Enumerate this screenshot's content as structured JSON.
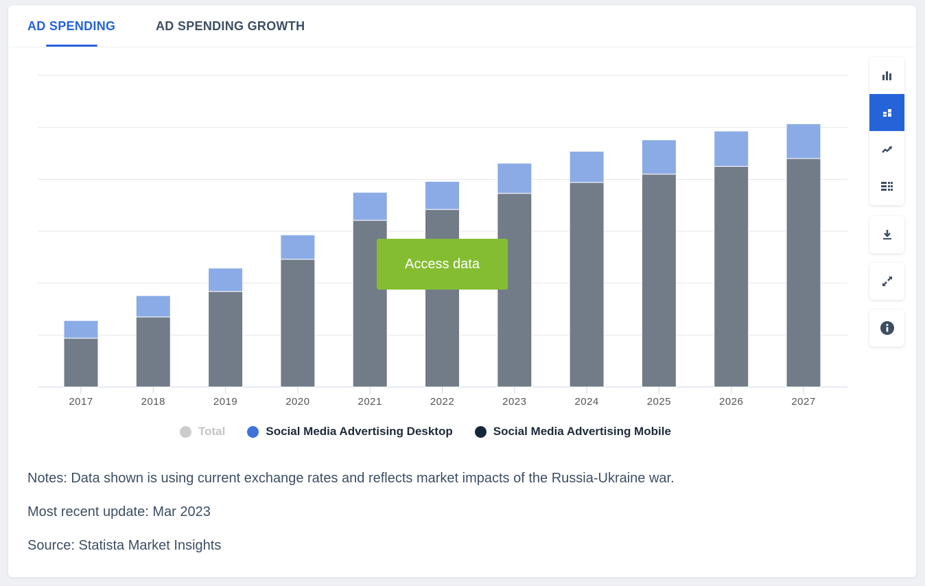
{
  "tabs": [
    {
      "label": "AD SPENDING",
      "active": true
    },
    {
      "label": "AD SPENDING GROWTH",
      "active": false
    }
  ],
  "toolbar": {
    "chart_types": [
      "bar-chart-icon",
      "stacked-bar-icon",
      "line-trend-icon",
      "table-icon"
    ],
    "active": "stacked-bar-icon",
    "actions": [
      "download-icon",
      "expand-icon",
      "info-icon"
    ]
  },
  "access_button": "Access data",
  "legend": [
    {
      "label": "Total",
      "color": "#cccccc",
      "disabled": true
    },
    {
      "label": "Social Media Advertising Desktop",
      "color": "#3f73db"
    },
    {
      "label": "Social Media Advertising Mobile",
      "color": "#16263d"
    }
  ],
  "notes": {
    "notes": "Notes: Data shown is using current exchange rates and reflects market impacts of the Russia-Ukraine war.",
    "update": "Most recent update: Mar 2023",
    "source": "Source: Statista Market Insights"
  },
  "chart_data": {
    "type": "bar",
    "stacked": true,
    "categories": [
      "2017",
      "2018",
      "2019",
      "2020",
      "2021",
      "2022",
      "2023",
      "2024",
      "2025",
      "2026",
      "2027"
    ],
    "series": [
      {
        "name": "Social Media Advertising Mobile",
        "color": "#727c88",
        "values": [
          0.94,
          1.35,
          1.84,
          2.46,
          3.21,
          3.42,
          3.73,
          3.94,
          4.1,
          4.25,
          4.4
        ]
      },
      {
        "name": "Social Media Advertising Desktop",
        "color": "#8aabe5",
        "values": [
          0.34,
          0.41,
          0.45,
          0.47,
          0.54,
          0.54,
          0.58,
          0.6,
          0.66,
          0.68,
          0.67
        ]
      }
    ],
    "ylim": [
      0,
      6
    ],
    "grid": true,
    "y_tick_labels_shown": false,
    "legend_position": "bottom"
  }
}
